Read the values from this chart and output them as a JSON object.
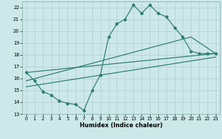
{
  "title": "",
  "xlabel": "Humidex (Indice chaleur)",
  "bg_color": "#cce8e8",
  "grid_color": "#b8d4d4",
  "line_color": "#2e7d6e",
  "xlim": [
    -0.5,
    23.5
  ],
  "ylim": [
    13,
    22.5
  ],
  "xticks": [
    0,
    1,
    2,
    3,
    4,
    5,
    6,
    7,
    8,
    9,
    10,
    11,
    12,
    13,
    14,
    15,
    16,
    17,
    18,
    19,
    20,
    21,
    22,
    23
  ],
  "yticks": [
    13,
    14,
    15,
    16,
    17,
    18,
    19,
    20,
    21,
    22
  ],
  "line1_x": [
    0,
    1,
    2,
    3,
    4,
    5,
    6,
    7,
    8,
    9,
    10,
    11,
    12,
    13,
    14,
    15,
    16,
    17,
    18,
    19,
    20,
    21,
    22,
    23
  ],
  "line1_y": [
    16.5,
    15.8,
    14.9,
    14.6,
    14.1,
    13.9,
    13.8,
    13.3,
    15.0,
    16.3,
    19.5,
    20.6,
    21.0,
    22.2,
    21.5,
    22.2,
    21.5,
    21.2,
    20.3,
    19.5,
    18.3,
    18.1,
    18.1,
    18.1
  ],
  "line2_x": [
    0,
    23
  ],
  "line2_y": [
    16.5,
    18.1
  ],
  "line3_x": [
    0,
    20,
    23
  ],
  "line3_y": [
    15.8,
    19.5,
    18.1
  ],
  "line4_x": [
    0,
    23
  ],
  "line4_y": [
    15.3,
    17.8
  ]
}
